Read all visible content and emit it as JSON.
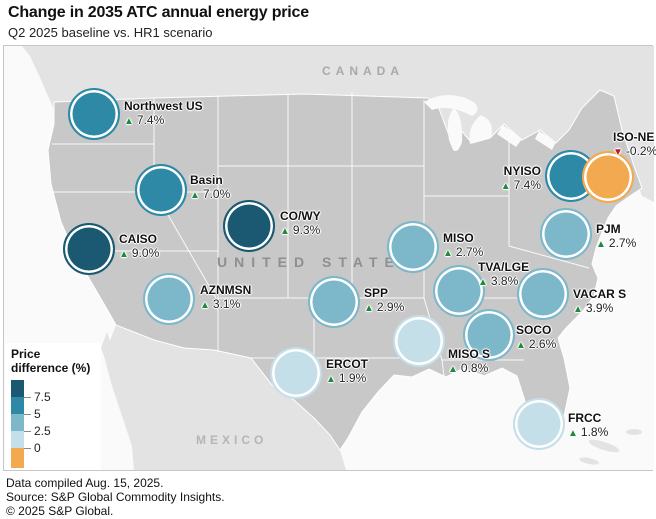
{
  "title": "Change in 2035 ATC annual energy price",
  "subtitle": "Q2 2025 baseline vs. HR1 scenario",
  "map": {
    "labels": {
      "canada": "CANADA",
      "united_states": "UNITED STATES",
      "mexico": "MEXICO"
    }
  },
  "markers": {
    "up": {
      "symbol": "▲",
      "color": "#1f8a3d"
    },
    "down": {
      "symbol": "▼",
      "color": "#c11a22"
    }
  },
  "palette": {
    "us_land": "#c8c8c8",
    "neighbor_land": "#e3e3e3",
    "ocean": "#fafafa",
    "state_border": "#ffffff"
  },
  "legend": {
    "title_line1": "Price",
    "title_line2": "difference (%)",
    "ticks": [
      "7.5",
      "5",
      "2.5",
      "0"
    ],
    "scale": [
      {
        "label": "above 7.5",
        "color": "#1a5971"
      },
      {
        "label": "5 to 7.5",
        "color": "#2d89a6"
      },
      {
        "label": "2.5 to 5",
        "color": "#7cb7ca"
      },
      {
        "label": "0 to 2.5",
        "color": "#c5dfe9"
      },
      {
        "label": "below 0",
        "color": "#f3a950"
      }
    ]
  },
  "regions": [
    {
      "id": "northwest-us",
      "name": "Northwest US",
      "value": "7.4%",
      "direction": "up",
      "color": "#2d89a6"
    },
    {
      "id": "basin",
      "name": "Basin",
      "value": "7.0%",
      "direction": "up",
      "color": "#2d89a6"
    },
    {
      "id": "caiso",
      "name": "CAISO",
      "value": "9.0%",
      "direction": "up",
      "color": "#1a5971"
    },
    {
      "id": "aznmsn",
      "name": "AZNMSN",
      "value": "3.1%",
      "direction": "up",
      "color": "#7cb7ca"
    },
    {
      "id": "co-wy",
      "name": "CO/WY",
      "value": "9.3%",
      "direction": "up",
      "color": "#1a5971"
    },
    {
      "id": "spp",
      "name": "SPP",
      "value": "2.9%",
      "direction": "up",
      "color": "#7cb7ca"
    },
    {
      "id": "ercot",
      "name": "ERCOT",
      "value": "1.9%",
      "direction": "up",
      "color": "#c5dfe9"
    },
    {
      "id": "miso",
      "name": "MISO",
      "value": "2.7%",
      "direction": "up",
      "color": "#7cb7ca"
    },
    {
      "id": "miso-s",
      "name": "MISO S",
      "value": "0.8%",
      "direction": "up",
      "color": "#c5dfe9"
    },
    {
      "id": "tva-lge",
      "name": "TVA/LGE",
      "value": "3.8%",
      "direction": "up",
      "color": "#7cb7ca"
    },
    {
      "id": "soco",
      "name": "SOCO",
      "value": "2.6%",
      "direction": "up",
      "color": "#7cb7ca"
    },
    {
      "id": "vacar-s",
      "name": "VACAR S",
      "value": "3.9%",
      "direction": "up",
      "color": "#7cb7ca"
    },
    {
      "id": "pjm",
      "name": "PJM",
      "value": "2.7%",
      "direction": "up",
      "color": "#7cb7ca"
    },
    {
      "id": "nyiso",
      "name": "NYISO",
      "value": "7.4%",
      "direction": "up",
      "color": "#2d89a6"
    },
    {
      "id": "iso-ne",
      "name": "ISO-NE",
      "value": "-0.2%",
      "direction": "down",
      "color": "#f3a950"
    },
    {
      "id": "frcc",
      "name": "FRCC",
      "value": "1.8%",
      "direction": "up",
      "color": "#c5dfe9"
    }
  ],
  "footer": {
    "line1": "Data compiled Aug. 15, 2025.",
    "line2": "Source: S&P Global Commodity Insights.",
    "line3": "© 2025 S&P Global."
  },
  "chart_data": {
    "type": "bubble-map",
    "title": "Change in 2035 ATC annual energy price",
    "subtitle": "Q2 2025 baseline vs. HR1 scenario",
    "unit": "%",
    "legend_title": "Price difference (%)",
    "legend_breaks": [
      0,
      2.5,
      5,
      7.5
    ],
    "legend_colors": [
      "#f3a950",
      "#c5dfe9",
      "#7cb7ca",
      "#2d89a6",
      "#1a5971"
    ],
    "regions": [
      {
        "name": "Northwest US",
        "value": 7.4
      },
      {
        "name": "Basin",
        "value": 7.0
      },
      {
        "name": "CAISO",
        "value": 9.0
      },
      {
        "name": "AZNMSN",
        "value": 3.1
      },
      {
        "name": "CO/WY",
        "value": 9.3
      },
      {
        "name": "SPP",
        "value": 2.9
      },
      {
        "name": "ERCOT",
        "value": 1.9
      },
      {
        "name": "MISO",
        "value": 2.7
      },
      {
        "name": "MISO S",
        "value": 0.8
      },
      {
        "name": "TVA/LGE",
        "value": 3.8
      },
      {
        "name": "SOCO",
        "value": 2.6
      },
      {
        "name": "VACAR S",
        "value": 3.9
      },
      {
        "name": "PJM",
        "value": 2.7
      },
      {
        "name": "NYISO",
        "value": 7.4
      },
      {
        "name": "ISO-NE",
        "value": -0.2
      },
      {
        "name": "FRCC",
        "value": 1.8
      }
    ],
    "source": "S&P Global Commodity Insights",
    "data_compiled": "Aug. 15, 2025"
  }
}
